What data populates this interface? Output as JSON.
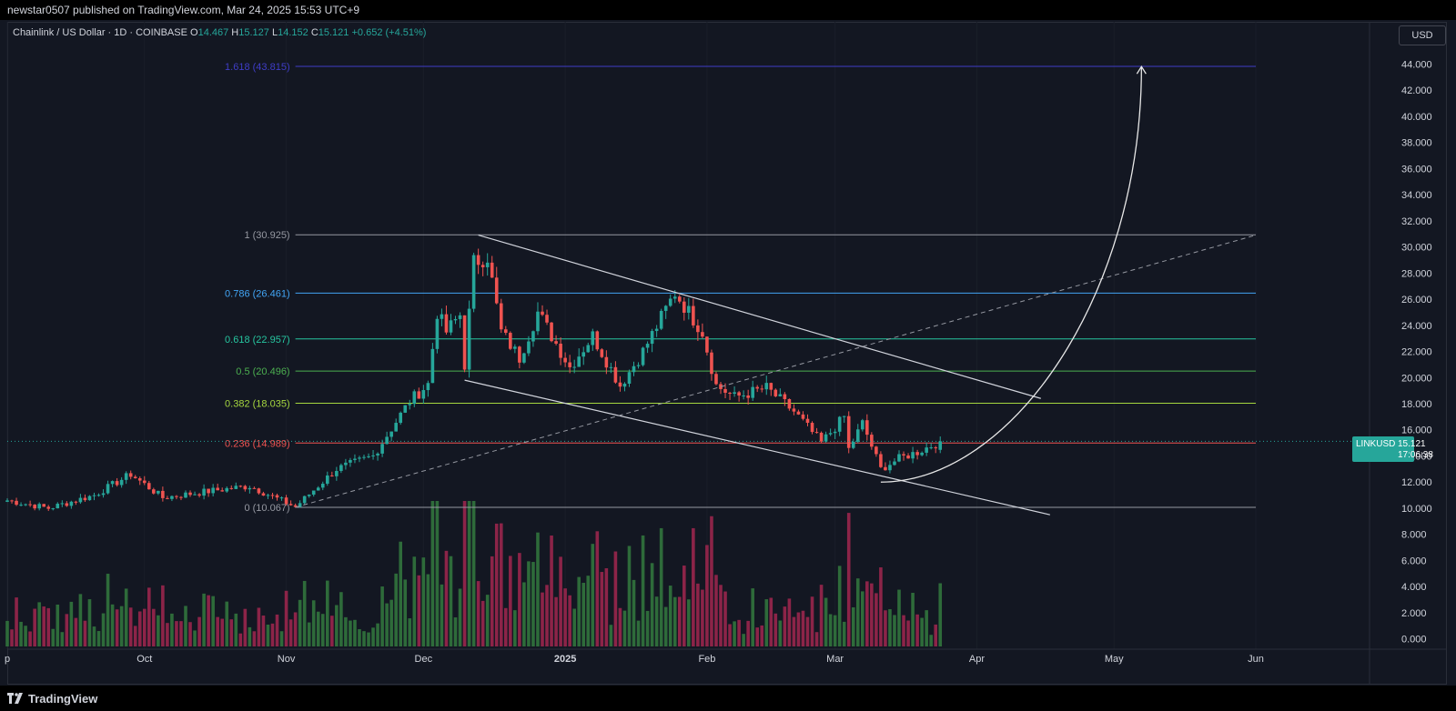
{
  "header": {
    "published": "newstar0507 published on TradingView.com, Mar 24, 2025 15:53 UTC+9"
  },
  "legend": {
    "symbol": "Chainlink / US Dollar · 1D · COINBASE",
    "o_label": "O",
    "o": "14.467",
    "h_label": "H",
    "h": "15.127",
    "l_label": "L",
    "l": "14.152",
    "c_label": "C",
    "c": "15.121",
    "change": "+0.652 (+4.51%)"
  },
  "currency": "USD",
  "price_tag": {
    "symbol": "LINKUSD",
    "price": "15.121",
    "countdown": "17:06:38"
  },
  "footer": {
    "brand": "TradingView"
  },
  "colors": {
    "up": "#26a69a",
    "down": "#ef5350",
    "vol_up": "#2e6b3a",
    "vol_down": "#8c2448"
  },
  "chart_data": {
    "type": "candlestick",
    "x_range": [
      "2024-09-01",
      "2025-06-01"
    ],
    "ylim": [
      0,
      46
    ],
    "y_ticks": [
      0,
      2,
      4,
      6,
      8,
      10,
      12,
      14,
      16,
      18,
      20,
      22,
      24,
      26,
      28,
      30,
      32,
      34,
      36,
      38,
      40,
      42,
      44
    ],
    "y_tick_labels": [
      "0.000",
      "2.000",
      "4.000",
      "6.000",
      "8.000",
      "10.000",
      "12.000",
      "14.000",
      "16.000",
      "18.000",
      "20.000",
      "22.000",
      "24.000",
      "26.000",
      "28.000",
      "30.000",
      "32.000",
      "34.000",
      "36.000",
      "38.000",
      "40.000",
      "42.000",
      "44.000"
    ],
    "x_ticks": [
      {
        "date": "2024-09-01",
        "label": "p"
      },
      {
        "date": "2024-10-01",
        "label": "Oct"
      },
      {
        "date": "2024-11-01",
        "label": "Nov"
      },
      {
        "date": "2024-12-01",
        "label": "Dec"
      },
      {
        "date": "2025-01-01",
        "label": "2025"
      },
      {
        "date": "2025-02-01",
        "label": "Feb"
      },
      {
        "date": "2025-03-01",
        "label": "Mar"
      },
      {
        "date": "2025-04-01",
        "label": "Apr"
      },
      {
        "date": "2025-05-01",
        "label": "May"
      },
      {
        "date": "2025-06-01",
        "label": "Jun"
      }
    ],
    "keypoints": [
      [
        "2024-09-01",
        10.6
      ],
      [
        "2024-09-10",
        10.0
      ],
      [
        "2024-09-20",
        11.0
      ],
      [
        "2024-09-28",
        12.6
      ],
      [
        "2024-10-05",
        10.8
      ],
      [
        "2024-10-15",
        11.3
      ],
      [
        "2024-10-24",
        11.7
      ],
      [
        "2024-11-03",
        10.1
      ],
      [
        "2024-11-12",
        13.0
      ],
      [
        "2024-11-20",
        14.0
      ],
      [
        "2024-11-28",
        18.2
      ],
      [
        "2024-12-02",
        19.5
      ],
      [
        "2024-12-04",
        25.0
      ],
      [
        "2024-12-06",
        23.5
      ],
      [
        "2024-12-09",
        24.8
      ],
      [
        "2024-12-10",
        21.0
      ],
      [
        "2024-12-12",
        28.8
      ],
      [
        "2024-12-15",
        29.3
      ],
      [
        "2024-12-18",
        23.5
      ],
      [
        "2024-12-22",
        21.5
      ],
      [
        "2024-12-26",
        25.0
      ],
      [
        "2025-01-02",
        20.8
      ],
      [
        "2025-01-07",
        23.2
      ],
      [
        "2025-01-13",
        19.4
      ],
      [
        "2025-01-18",
        22.0
      ],
      [
        "2025-01-25",
        26.5
      ],
      [
        "2025-01-31",
        23.5
      ],
      [
        "2025-02-03",
        19.4
      ],
      [
        "2025-02-07",
        18.5
      ],
      [
        "2025-02-14",
        19.2
      ],
      [
        "2025-02-20",
        17.4
      ],
      [
        "2025-02-26",
        15.0
      ],
      [
        "2025-03-03",
        17.0
      ],
      [
        "2025-03-04",
        14.5
      ],
      [
        "2025-03-07",
        16.5
      ],
      [
        "2025-03-11",
        13.0
      ],
      [
        "2025-03-15",
        13.8
      ],
      [
        "2025-03-19",
        14.3
      ],
      [
        "2025-03-24",
        15.121
      ]
    ],
    "last_price": 15.121,
    "fib_levels": [
      {
        "ratio": "1.618",
        "label": "1.618 (43.815)",
        "price": 43.815,
        "color": "#3f3dc7"
      },
      {
        "ratio": "1",
        "label": "1 (30.925)",
        "price": 30.925,
        "color": "#9598a1"
      },
      {
        "ratio": "0.786",
        "label": "0.786 (26.461)",
        "price": 26.461,
        "color": "#42a5f5"
      },
      {
        "ratio": "0.618",
        "label": "0.618 (22.957)",
        "price": 22.957,
        "color": "#26c6a0"
      },
      {
        "ratio": "0.5",
        "label": "0.5 (20.496)",
        "price": 20.496,
        "color": "#4caf50"
      },
      {
        "ratio": "0.382",
        "label": "0.382 (18.035)",
        "price": 18.035,
        "color": "#a5d63f"
      },
      {
        "ratio": "0.236",
        "label": "0.236 (14.989)",
        "price": 14.989,
        "color": "#ef5350"
      },
      {
        "ratio": "0",
        "label": "0 (10.067)",
        "price": 10.067,
        "color": "#9598a1"
      }
    ],
    "fib_range": [
      "2024-11-03",
      "2025-06-01"
    ],
    "trendlines": [
      {
        "from": [
          "2024-12-13",
          30.9
        ],
        "to": [
          "2025-04-15",
          18.4
        ]
      },
      {
        "from": [
          "2024-12-10",
          19.8
        ],
        "to": [
          "2025-04-17",
          9.5
        ]
      },
      {
        "from": [
          "2024-11-03",
          10.07
        ],
        "to": [
          "2025-06-01",
          30.9
        ],
        "dashed": true
      }
    ],
    "projection_curve": {
      "from": [
        "2025-03-11",
        12.0
      ],
      "to": [
        "2025-05-07",
        43.8
      ]
    }
  }
}
